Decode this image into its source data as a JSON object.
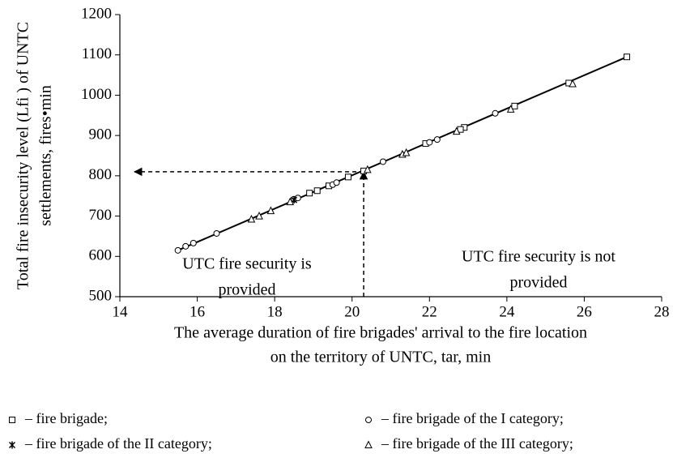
{
  "chart_data": {
    "type": "scatter",
    "xlabel": [
      "The average duration of fire brigades' arrival to the fire location",
      "on the territory of UNTC, tar, min"
    ],
    "ylabel": [
      "Total fire insecurity level (Lfi ) of UNTC",
      "settlements, fires•min"
    ],
    "xlim": [
      14,
      28
    ],
    "xticks": [
      14,
      16,
      18,
      20,
      22,
      24,
      26,
      28
    ],
    "ylim": [
      500,
      1200
    ],
    "yticks": [
      500,
      600,
      700,
      800,
      900,
      1000,
      1100,
      1200
    ],
    "series": [
      {
        "name": "– fire brigade;",
        "marker": "square",
        "color": "#000000",
        "x": [
          27.1,
          25.6,
          24.2,
          22.9,
          22.8,
          21.9,
          20.3,
          19.9,
          19.4,
          19.1,
          18.9
        ],
        "values": [
          1095,
          1030,
          973,
          920,
          915,
          880,
          812,
          797,
          775,
          763,
          757
        ]
      },
      {
        "name": "– fire brigade of the I category;",
        "marker": "circle",
        "color": "#000000",
        "x": [
          15.5,
          15.7,
          15.9,
          16.5,
          18.5,
          18.6,
          19.5,
          19.6,
          20.8,
          22.0,
          22.2,
          23.7
        ],
        "values": [
          615,
          625,
          633,
          657,
          742,
          745,
          778,
          783,
          835,
          883,
          890,
          955
        ]
      },
      {
        "name": "–  fire brigade of the II category;",
        "marker": "star",
        "color": "#000000",
        "x": [
          18.5
        ],
        "values": [
          740
        ]
      },
      {
        "name": "– fire brigade of the III category;",
        "marker": "triangle",
        "color": "#000000",
        "x": [
          17.4,
          17.6,
          17.9,
          18.4,
          20.4,
          21.3,
          21.4,
          22.7,
          24.1,
          25.7
        ],
        "values": [
          692,
          700,
          713,
          735,
          815,
          853,
          857,
          910,
          965,
          1028
        ]
      }
    ],
    "fit": {
      "x": [
        15.5,
        27.1
      ],
      "values": [
        615,
        1095
      ]
    },
    "marker": {
      "x": 20.3,
      "y": 810
    },
    "annotations": [
      {
        "lines": [
          "UTC fire security is",
          "provided"
        ]
      },
      {
        "lines": [
          "UTC fire security is not",
          "provided"
        ]
      }
    ]
  }
}
